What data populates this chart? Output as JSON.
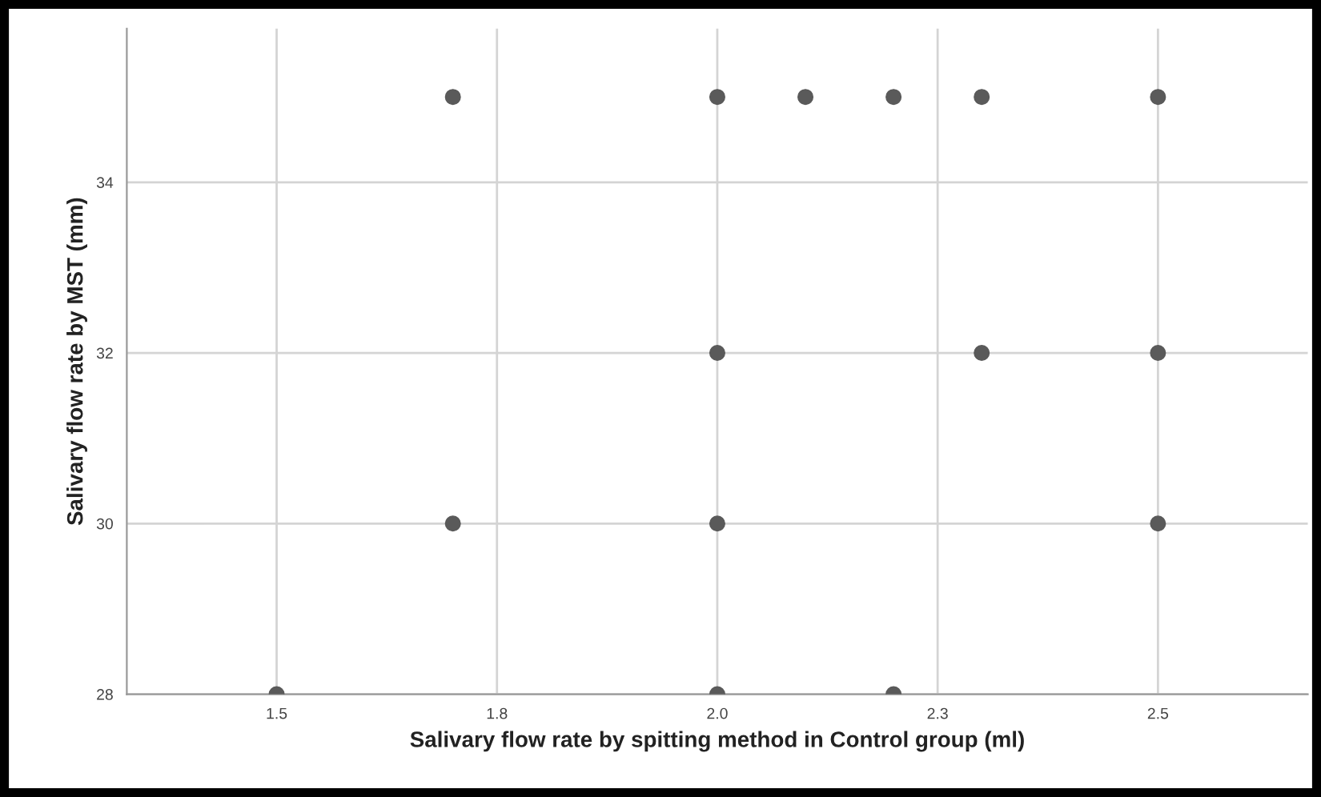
{
  "chart_data": {
    "type": "scatter",
    "xlabel": "Salivary flow rate by spitting method in Control group (ml)",
    "ylabel": "Salivary flow rate by MST (mm)",
    "series": [
      {
        "color": "#5a5a5a",
        "x": [
          1.5,
          1.7,
          1.7,
          2.0,
          2.0,
          2.0,
          2.0,
          2.1,
          2.2,
          2.2,
          2.3,
          2.3,
          2.5,
          2.5,
          2.5
        ],
        "values": [
          28,
          35,
          30,
          35,
          32,
          30,
          28,
          35,
          35,
          28,
          35,
          32,
          35,
          32,
          30
        ]
      }
    ],
    "xlim": [
      1.33,
      2.67
    ],
    "ylim": [
      28,
      35.8
    ],
    "xticks": [
      1.5,
      {
        "value": 1.75,
        "label": "1.8"
      },
      {
        "value": 2.0,
        "label": "2.0"
      },
      {
        "value": 2.25,
        "label": "2.3"
      },
      2.5
    ],
    "yticks": [
      28,
      30,
      32,
      34
    ],
    "grid": true,
    "marker": "circle"
  }
}
